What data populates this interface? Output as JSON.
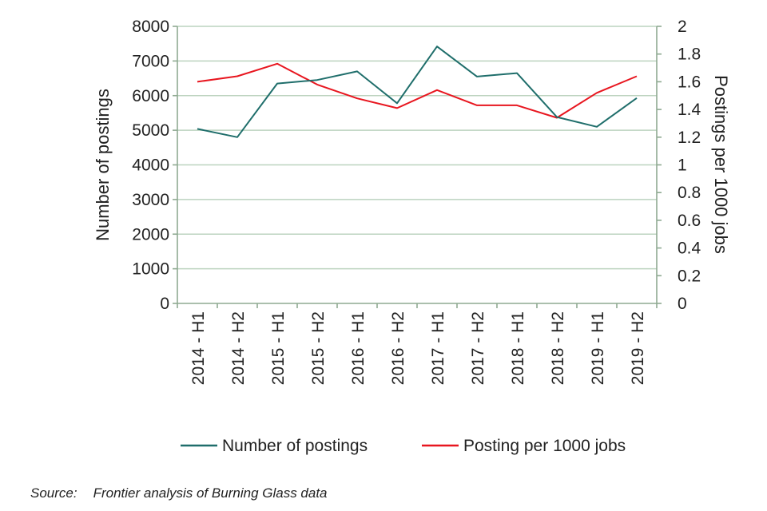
{
  "chart_data": {
    "type": "line",
    "categories": [
      "2014 - H1",
      "2014 - H2",
      "2015 - H1",
      "2015 - H2",
      "2016 - H1",
      "2016 - H2",
      "2017 - H1",
      "2017 - H2",
      "2018 - H1",
      "2018 - H2",
      "2019 - H1",
      "2019 - H2"
    ],
    "series": [
      {
        "name": "Number of postings",
        "axis": "left",
        "color": "#1f6e6b",
        "values": [
          5040,
          4800,
          6350,
          6450,
          6700,
          5780,
          7420,
          6550,
          6650,
          5380,
          5100,
          5930
        ]
      },
      {
        "name": "Posting per 1000 jobs",
        "axis": "right",
        "color": "#e8161f",
        "values": [
          1.6,
          1.64,
          1.73,
          1.58,
          1.48,
          1.41,
          1.54,
          1.43,
          1.43,
          1.34,
          1.52,
          1.64
        ]
      }
    ],
    "ylabel": "Number of postings",
    "ylabel_right": "Postings per 1000 jobs",
    "ylim": [
      0,
      8000
    ],
    "ylim_right": [
      0,
      2
    ],
    "yticks": [
      "0",
      "1000",
      "2000",
      "3000",
      "4000",
      "5000",
      "6000",
      "7000",
      "8000"
    ],
    "yticks_right": [
      "0",
      "0.2",
      "0.4",
      "0.6",
      "0.8",
      "1",
      "1.2",
      "1.4",
      "1.6",
      "1.8",
      "2"
    ],
    "grid": true,
    "legend_position": "bottom"
  },
  "source": {
    "label": "Source:",
    "text": "Frontier analysis of Burning Glass data"
  },
  "colors": {
    "gridline": "#bcd3bf",
    "axis": "#8faa92"
  }
}
